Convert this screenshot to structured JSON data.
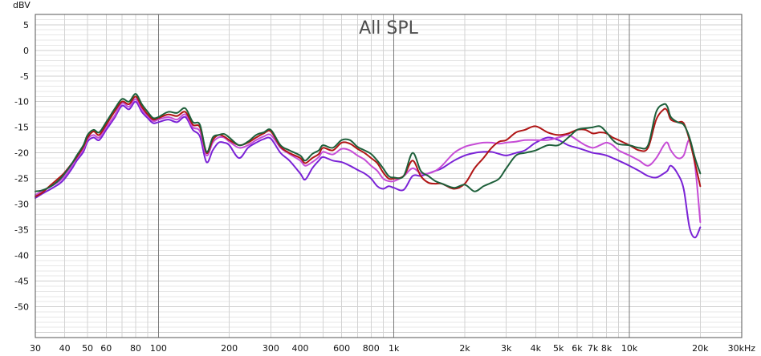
{
  "chart_data": {
    "type": "line",
    "title": "All SPL",
    "ylabel": "dBV",
    "xlabel": "",
    "x_scale": "log",
    "ylim": [
      -56,
      7
    ],
    "xlim": [
      30,
      30000
    ],
    "grid": true,
    "legend": "none",
    "y_ticks": [
      5,
      0,
      -5,
      -10,
      -15,
      -20,
      -25,
      -30,
      -35,
      -40,
      -45,
      -50
    ],
    "y_tick_labels": [
      "5",
      "0",
      "-5",
      "-10",
      "-15",
      "-20",
      "-25",
      "-30",
      "-35",
      "-40",
      "-45",
      "-50"
    ],
    "x_ticks": [
      30,
      40,
      50,
      60,
      80,
      100,
      200,
      300,
      400,
      600,
      800,
      1000,
      2000,
      3000,
      4000,
      5000,
      6000,
      7000,
      8000,
      10000,
      20000,
      30000
    ],
    "x_tick_labels": [
      "30",
      "40",
      "50",
      "60",
      "80",
      "100",
      "200",
      "300",
      "400",
      "600",
      "800",
      "1k",
      "2k",
      "3k",
      "4k",
      "5k",
      "6k",
      "7k",
      "8k",
      "10k",
      "20k",
      "30kHz"
    ],
    "series": [
      {
        "color": "#1d5f3a",
        "x": [
          30,
          32,
          35,
          38,
          40,
          43,
          45,
          48,
          50,
          53,
          56,
          60,
          65,
          70,
          75,
          80,
          85,
          90,
          95,
          100,
          110,
          120,
          130,
          140,
          150,
          160,
          170,
          180,
          190,
          200,
          220,
          240,
          260,
          280,
          300,
          330,
          360,
          400,
          420,
          450,
          480,
          500,
          550,
          600,
          650,
          700,
          750,
          800,
          850,
          900,
          950,
          1000,
          1100,
          1200,
          1300,
          1400,
          1500,
          1600,
          1800,
          2000,
          2200,
          2400,
          2600,
          2800,
          3000,
          3300,
          3600,
          4000,
          4500,
          5000,
          5500,
          6000,
          6500,
          7000,
          7500,
          8000,
          8500,
          9000,
          10000,
          11000,
          12000,
          13000,
          14000,
          14500,
          15000,
          16000,
          17000,
          18000,
          19000,
          20000
        ],
        "y": [
          -27.5,
          -27.3,
          -26.5,
          -25.2,
          -24,
          -22,
          -20.5,
          -18.5,
          -16.5,
          -15.5,
          -16,
          -14,
          -11.5,
          -9.5,
          -10,
          -8.5,
          -10.5,
          -12,
          -13.2,
          -13,
          -12,
          -12.2,
          -11.3,
          -14,
          -14.5,
          -19.8,
          -17,
          -16.5,
          -16.3,
          -17,
          -18.5,
          -17.8,
          -16.5,
          -16,
          -15.5,
          -18.5,
          -19.5,
          -20.5,
          -21.5,
          -20.2,
          -19.5,
          -18.5,
          -19,
          -17.5,
          -17.5,
          -18.8,
          -19.5,
          -20.2,
          -21.5,
          -23,
          -24.5,
          -24.8,
          -24.5,
          -20,
          -23.5,
          -24.5,
          -25.5,
          -26,
          -26.8,
          -26.2,
          -27.5,
          -26.5,
          -25.8,
          -25,
          -23,
          -20.5,
          -20,
          -19.5,
          -18.5,
          -18.5,
          -17,
          -15.5,
          -15.2,
          -15,
          -14.8,
          -16,
          -17.5,
          -18.3,
          -18.5,
          -19,
          -18.5,
          -12,
          -10.5,
          -11,
          -13,
          -14,
          -14.5,
          -17,
          -21,
          -24
        ]
      },
      {
        "color": "#b01515",
        "x": [
          30,
          32,
          35,
          38,
          40,
          43,
          45,
          48,
          50,
          53,
          56,
          60,
          65,
          70,
          75,
          80,
          85,
          90,
          95,
          100,
          110,
          120,
          130,
          140,
          150,
          160,
          170,
          180,
          190,
          200,
          220,
          240,
          260,
          280,
          300,
          330,
          360,
          400,
          420,
          450,
          480,
          500,
          550,
          600,
          650,
          700,
          750,
          800,
          850,
          900,
          950,
          1000,
          1100,
          1200,
          1300,
          1400,
          1500,
          1600,
          1800,
          2000,
          2200,
          2400,
          2600,
          2800,
          3000,
          3300,
          3600,
          4000,
          4500,
          5000,
          5500,
          6000,
          6500,
          7000,
          7500,
          8000,
          8500,
          9000,
          10000,
          11000,
          12000,
          13000,
          14000,
          14500,
          15000,
          16000,
          17000,
          18000,
          19000,
          20000
        ],
        "y": [
          -28.5,
          -27.8,
          -26.2,
          -24.8,
          -23.8,
          -22,
          -20.8,
          -18.8,
          -17,
          -15.8,
          -16.5,
          -14.5,
          -12,
          -10,
          -10.5,
          -9,
          -11,
          -12.5,
          -13.5,
          -13.2,
          -12.5,
          -12.8,
          -12,
          -14.5,
          -15,
          -20,
          -17.5,
          -16.5,
          -16.8,
          -17.5,
          -18.5,
          -18,
          -17,
          -16.2,
          -15.8,
          -18.8,
          -20,
          -21,
          -22,
          -21,
          -20.2,
          -19,
          -19.5,
          -18,
          -18.2,
          -19.2,
          -20,
          -21,
          -22,
          -23.8,
          -25,
          -25,
          -24.5,
          -21.5,
          -24.5,
          -25.8,
          -26,
          -26,
          -27,
          -26,
          -23,
          -21,
          -19,
          -17.8,
          -17.5,
          -16,
          -15.5,
          -14.8,
          -16,
          -16.5,
          -16.2,
          -15.5,
          -15.5,
          -16.2,
          -16,
          -16.2,
          -17,
          -17.5,
          -18.5,
          -19.5,
          -19,
          -13.5,
          -11.5,
          -11.8,
          -13.5,
          -14,
          -14.2,
          -17.5,
          -22,
          -26.5
        ]
      },
      {
        "color": "#c64cd6",
        "x": [
          30,
          32,
          35,
          38,
          40,
          43,
          45,
          48,
          50,
          53,
          56,
          60,
          65,
          70,
          75,
          80,
          85,
          90,
          95,
          100,
          110,
          120,
          130,
          140,
          150,
          160,
          170,
          180,
          190,
          200,
          220,
          240,
          260,
          280,
          300,
          330,
          360,
          400,
          420,
          450,
          480,
          500,
          550,
          600,
          650,
          700,
          750,
          800,
          850,
          900,
          950,
          1000,
          1100,
          1200,
          1300,
          1400,
          1500,
          1600,
          1800,
          2000,
          2200,
          2400,
          2600,
          2800,
          3000,
          3300,
          3600,
          4000,
          4500,
          5000,
          5500,
          6000,
          6500,
          7000,
          7500,
          8000,
          8500,
          9000,
          10000,
          11000,
          12000,
          13000,
          14000,
          14500,
          15000,
          16000,
          17000,
          18000,
          19000,
          20000
        ],
        "y": [
          -28.2,
          -27.5,
          -26.5,
          -25.5,
          -24.5,
          -22.5,
          -21,
          -19.3,
          -17.3,
          -16.5,
          -17,
          -15,
          -12.8,
          -10.3,
          -11,
          -9.5,
          -11.5,
          -12.8,
          -13.8,
          -13.5,
          -13,
          -13.5,
          -12.5,
          -15,
          -15.8,
          -20.5,
          -18,
          -17,
          -17,
          -17.8,
          -19,
          -18.5,
          -17.5,
          -16.8,
          -16.5,
          -19,
          -20.2,
          -21.5,
          -22.5,
          -21.8,
          -20.8,
          -19.8,
          -20.3,
          -19.2,
          -19.5,
          -20.5,
          -21.3,
          -22.5,
          -23.5,
          -25,
          -25.5,
          -25.5,
          -24.5,
          -23,
          -24,
          -24,
          -23.5,
          -22.5,
          -20,
          -18.8,
          -18.3,
          -18,
          -18,
          -18.2,
          -18,
          -17.8,
          -17.5,
          -17.5,
          -17.5,
          -17,
          -16.5,
          -17.5,
          -18.5,
          -19,
          -18.5,
          -18,
          -18.5,
          -19.5,
          -20.5,
          -21.5,
          -22.5,
          -21,
          -18.5,
          -18,
          -19.5,
          -21,
          -20.5,
          -17.5,
          -22.5,
          -33.5
        ]
      },
      {
        "color": "#7a22d6",
        "x": [
          30,
          32,
          35,
          38,
          40,
          43,
          45,
          48,
          50,
          53,
          56,
          60,
          65,
          70,
          75,
          80,
          85,
          90,
          95,
          100,
          110,
          120,
          130,
          140,
          150,
          160,
          170,
          180,
          190,
          200,
          220,
          240,
          260,
          280,
          300,
          330,
          360,
          400,
          420,
          450,
          480,
          500,
          550,
          600,
          650,
          700,
          750,
          800,
          850,
          900,
          950,
          1000,
          1100,
          1200,
          1300,
          1400,
          1500,
          1600,
          1800,
          2000,
          2200,
          2400,
          2600,
          2800,
          3000,
          3300,
          3600,
          4000,
          4500,
          5000,
          5500,
          6000,
          6500,
          7000,
          7500,
          8000,
          8500,
          9000,
          10000,
          11000,
          12000,
          13000,
          14000,
          14500,
          15000,
          16000,
          17000,
          18000,
          19000,
          20000
        ],
        "y": [
          -28.8,
          -28,
          -27,
          -26,
          -25,
          -23,
          -21.5,
          -19.8,
          -17.8,
          -17,
          -17.5,
          -15.5,
          -13.2,
          -10.8,
          -11.5,
          -10,
          -12,
          -13.2,
          -14.2,
          -14,
          -13.5,
          -14,
          -13,
          -15.5,
          -16.8,
          -21.8,
          -19.5,
          -18,
          -18,
          -18.5,
          -21,
          -19,
          -18,
          -17.3,
          -17.2,
          -20,
          -21.5,
          -24,
          -25.2,
          -23,
          -21.5,
          -20.8,
          -21.5,
          -21.8,
          -22.5,
          -23.3,
          -24,
          -25,
          -26.5,
          -27,
          -26.5,
          -26.8,
          -27.2,
          -24.5,
          -24.5,
          -24,
          -23.5,
          -23,
          -21.5,
          -20.5,
          -20,
          -19.8,
          -19.8,
          -20.2,
          -20.5,
          -20,
          -19.5,
          -18,
          -17,
          -17.5,
          -18.5,
          -19,
          -19.5,
          -20,
          -20.2,
          -20.5,
          -21,
          -21.5,
          -22.5,
          -23.5,
          -24.5,
          -24.8,
          -24,
          -23.5,
          -22.5,
          -24,
          -27,
          -34.5,
          -36.5,
          -34.5
        ]
      }
    ]
  }
}
